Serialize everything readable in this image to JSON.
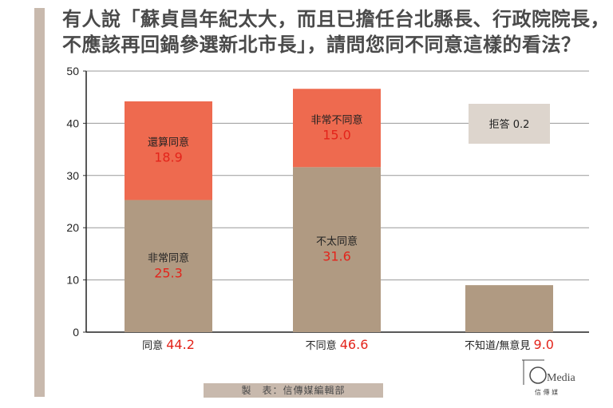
{
  "title_lines": [
    "有人說「蘇貞昌年紀太大，而且已擔任台北縣長、行政院院長，",
    "不應該再回鍋參選新北市長」，請問您同不同意這樣的看法？"
  ],
  "source": "製　表：信傳媒編輯部",
  "logo": {
    "text": "Media",
    "sub": "信 傳 媒"
  },
  "colors": {
    "light_brown": "#b09a82",
    "orange": "#ee6a4f",
    "box_grey": "#ddd5cd",
    "red_value": "#e3241b",
    "accent_bar": "#c8b9ad"
  },
  "chart_data": {
    "type": "bar",
    "stacked": true,
    "categories": [
      "同意",
      "不同意",
      "不知道/無意見"
    ],
    "category_totals": [
      "44.2",
      "46.6",
      "9.0"
    ],
    "ylim": [
      0,
      50
    ],
    "yticks": [
      0,
      10,
      20,
      30,
      40,
      50
    ],
    "grid": true,
    "series": [
      {
        "name": "非常同意 / 不太同意",
        "segment_labels": [
          "非常同意",
          "不太同意",
          ""
        ],
        "values": [
          25.3,
          31.6,
          9.0
        ]
      },
      {
        "name": "還算同意 / 非常不同意",
        "segment_labels": [
          "還算同意",
          "非常不同意",
          ""
        ],
        "values": [
          18.9,
          15.0,
          0
        ]
      }
    ],
    "annotation": {
      "label": "拒答",
      "value": "0.2"
    }
  }
}
